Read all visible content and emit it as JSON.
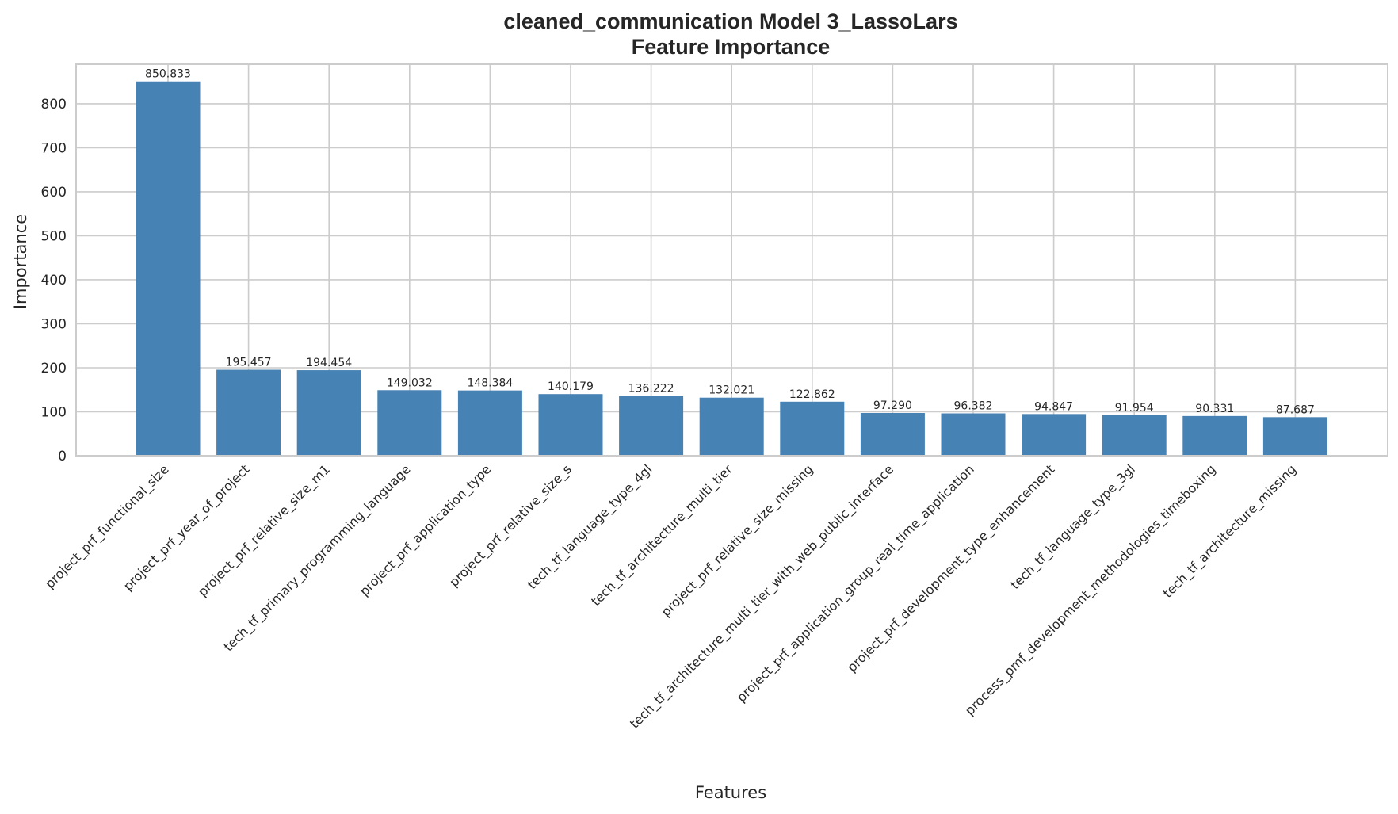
{
  "chart_data": {
    "type": "bar",
    "title": "cleaned_communication Model 3_LassoLars",
    "subtitle": "Feature Importance",
    "xlabel": "Features",
    "ylabel": "Importance",
    "ylim": [
      0,
      890
    ],
    "yticks": [
      0,
      100,
      200,
      300,
      400,
      500,
      600,
      700,
      800
    ],
    "grid": true,
    "bar_color": "#4682b4",
    "categories": [
      "project_prf_functional_size",
      "project_prf_year_of_project",
      "project_prf_relative_size_m1",
      "tech_tf_primary_programming_language",
      "project_prf_application_type",
      "project_prf_relative_size_s",
      "tech_tf_language_type_4gl",
      "tech_tf_architecture_multi_tier",
      "project_prf_relative_size_missing",
      "tech_tf_architecture_multi_tier_with_web_public_interface",
      "project_prf_application_group_real_time_application",
      "project_prf_development_type_enhancement",
      "tech_tf_language_type_3gl",
      "process_pmf_development_methodologies_timeboxing",
      "tech_tf_architecture_missing"
    ],
    "values": [
      850.833,
      195.457,
      194.454,
      149.032,
      148.384,
      140.179,
      136.222,
      132.021,
      122.862,
      97.29,
      96.382,
      94.847,
      91.954,
      90.331,
      87.687
    ],
    "value_labels": [
      "850.833",
      "195.457",
      "194.454",
      "149.032",
      "148.384",
      "140.179",
      "136.222",
      "132.021",
      "122.862",
      "97.290",
      "96.382",
      "94.847",
      "91.954",
      "90.331",
      "87.687"
    ]
  }
}
